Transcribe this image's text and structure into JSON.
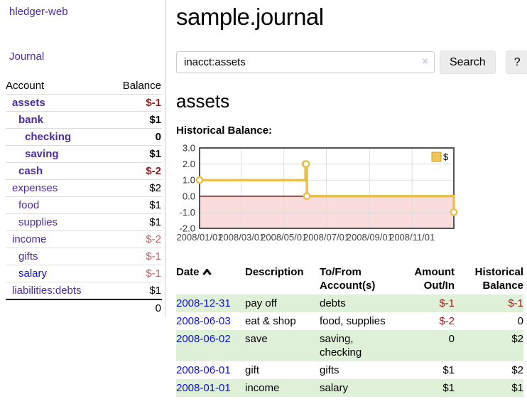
{
  "colors": {
    "purple": "#4b2ba0",
    "blue": "#0f0fdd",
    "negative": "#9c1818",
    "negative-soft": "#c06060",
    "row-green": "#dff0d8",
    "gold": "#e8c050",
    "gold-fill": "#eec659",
    "gold-border": "#c9a132",
    "pink": "#fadcdc",
    "zero-line": "#8b0000",
    "grid": "#dddddd",
    "chart-border": "#545454"
  },
  "app": {
    "title": "hledger-web"
  },
  "sidebar": {
    "journal_link": "Journal",
    "accounts": {
      "header_account": "Account",
      "header_balance": "Balance",
      "rows": [
        {
          "name": "assets",
          "indent": 0,
          "bold": true,
          "balance": "$-1",
          "balance_class": "neg"
        },
        {
          "name": "bank",
          "indent": 1,
          "bold": true,
          "balance": "$1",
          "balance_class": ""
        },
        {
          "name": "checking",
          "indent": 2,
          "bold": true,
          "balance": "0",
          "balance_class": ""
        },
        {
          "name": "saving",
          "indent": 2,
          "bold": true,
          "balance": "$1",
          "balance_class": ""
        },
        {
          "name": "cash",
          "indent": 1,
          "bold": true,
          "balance": "$-2",
          "balance_class": "neg"
        },
        {
          "name": "expenses",
          "indent": 0,
          "bold": false,
          "balance": "$2",
          "balance_class": ""
        },
        {
          "name": "food",
          "indent": 1,
          "bold": false,
          "balance": "$1",
          "balance_class": ""
        },
        {
          "name": "supplies",
          "indent": 1,
          "bold": false,
          "balance": "$1",
          "balance_class": ""
        },
        {
          "name": "income",
          "indent": 0,
          "bold": false,
          "balance": "$-2",
          "balance_class": "neg-soft"
        },
        {
          "name": "gifts",
          "indent": 1,
          "bold": false,
          "balance": "$-1",
          "balance_class": "neg-soft"
        },
        {
          "name": "salary",
          "indent": 1,
          "bold": false,
          "blue": true,
          "balance": "$-1",
          "balance_class": "neg-soft"
        },
        {
          "name": "liabilities:debts",
          "indent": 0,
          "bold": false,
          "balance": "$1",
          "balance_class": ""
        }
      ],
      "total": "0"
    }
  },
  "main": {
    "title": "sample.journal",
    "search": {
      "value": "inacct:assets",
      "clear_icon": "×",
      "button_label": "Search",
      "help_label": "?"
    },
    "account_heading": "assets",
    "chart_heading": "Historical Balance:"
  },
  "chart_data": {
    "type": "line",
    "step": true,
    "series": [
      {
        "name": "$",
        "x": [
          "2008-01-01",
          "2008-06-01",
          "2008-06-02",
          "2008-06-03",
          "2008-12-31"
        ],
        "y": [
          1,
          2,
          2,
          0,
          -1
        ]
      }
    ],
    "xlim": [
      "2008-01-01",
      "2008-12-31"
    ],
    "ylim": [
      -2,
      3
    ],
    "yticks": [
      3.0,
      2.0,
      1.0,
      0.0,
      -1.0,
      -2.0
    ],
    "ytick_labels": [
      "3.0",
      "2.0",
      "1.0",
      "0.0",
      "-1.0",
      "-2.0"
    ],
    "xtick_labels": [
      "2008/01/01",
      "2008/03/01",
      "2008/05/01",
      "2008/07/01",
      "2008/09/01",
      "2008/11/01"
    ],
    "legend": {
      "label": "$",
      "position": "top-right"
    },
    "negative_region_fill": true,
    "grid": true
  },
  "register": {
    "headers": {
      "date": "Date",
      "description": "Description",
      "accounts": "To/From Account(s)",
      "amount": "Amount Out/In",
      "balance": "Historical Balance"
    },
    "rows": [
      {
        "date": "2008-12-31",
        "description": "pay off",
        "accounts": "debts",
        "amount": "$-1",
        "amount_neg": true,
        "balance": "$-1",
        "balance_neg": true
      },
      {
        "date": "2008-06-03",
        "description": "eat & shop",
        "accounts": "food, supplies",
        "amount": "$-2",
        "amount_neg": true,
        "balance": "0",
        "balance_neg": false
      },
      {
        "date": "2008-06-02",
        "description": "save",
        "accounts": "saving, checking",
        "amount": "0",
        "amount_neg": false,
        "balance": "$2",
        "balance_neg": false
      },
      {
        "date": "2008-06-01",
        "description": "gift",
        "accounts": "gifts",
        "amount": "$1",
        "amount_neg": false,
        "balance": "$2",
        "balance_neg": false
      },
      {
        "date": "2008-01-01",
        "description": "income",
        "accounts": "salary",
        "amount": "$1",
        "amount_neg": false,
        "balance": "$1",
        "balance_neg": false
      }
    ]
  }
}
